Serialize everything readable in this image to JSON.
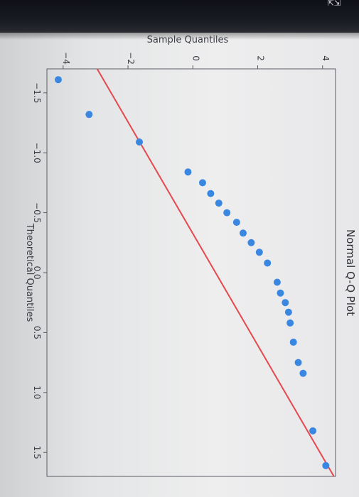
{
  "chart_data": {
    "type": "scatter",
    "title": "Normal Q-Q Plot",
    "xlabel": "Theoretical Quantiles",
    "ylabel": "Sample Quantiles",
    "xlim": [
      -1.7,
      1.7
    ],
    "ylim": [
      -4.5,
      4.4
    ],
    "xticks": [
      -1.5,
      -1.0,
      -0.5,
      0.0,
      0.5,
      1.0,
      1.5
    ],
    "xtick_labels": [
      "−1.5",
      "−1.0",
      "−0.5",
      "0.0",
      "0.5",
      "1.0",
      "1.5"
    ],
    "yticks": [
      -4,
      -2,
      0,
      2,
      4
    ],
    "ytick_labels": [
      "−4",
      "−2",
      "0",
      "2",
      "4"
    ],
    "grid": false,
    "points": {
      "x": [
        -1.61,
        -1.32,
        -1.09,
        -0.84,
        -0.75,
        -0.66,
        -0.58,
        -0.5,
        -0.42,
        -0.33,
        -0.25,
        -0.17,
        -0.08,
        0.08,
        0.17,
        0.25,
        0.33,
        0.42,
        0.58,
        0.75,
        0.84,
        1.32,
        1.61
      ],
      "y": [
        -4.15,
        -3.2,
        -1.65,
        -0.15,
        0.3,
        0.55,
        0.8,
        1.05,
        1.35,
        1.55,
        1.8,
        2.05,
        2.3,
        2.6,
        2.7,
        2.85,
        2.95,
        3.0,
        3.1,
        3.25,
        3.4,
        3.7,
        4.1
      ]
    },
    "colors": {
      "points": "#3a87e2",
      "line": "#e5484d"
    },
    "reference_line": {
      "x": [
        -1.7,
        1.7
      ],
      "y": [
        -2.95,
        4.35
      ]
    }
  }
}
